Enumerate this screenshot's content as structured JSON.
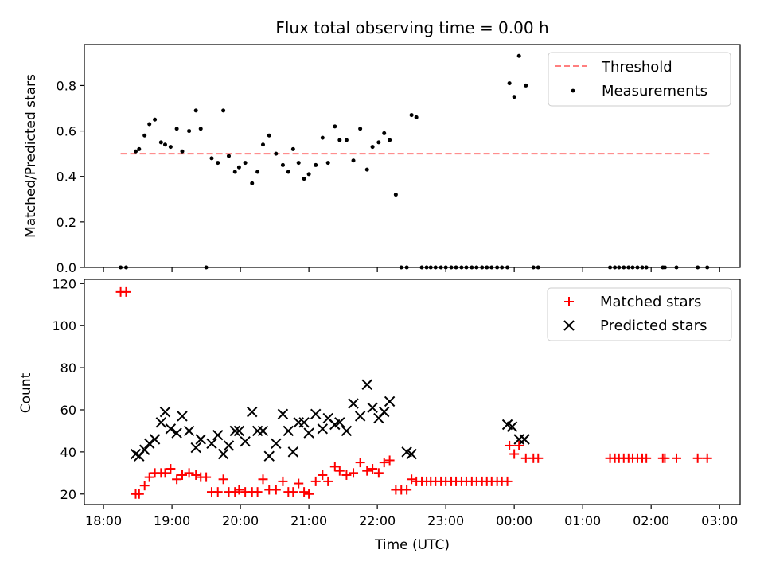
{
  "figure": {
    "title": "Flux total observing time = 0.00 h"
  },
  "colors": {
    "threshold": "#ff7f7f",
    "measurements": "#000000",
    "matched": "#ff0000",
    "predicted": "#000000"
  },
  "chart_data": [
    {
      "type": "scatter",
      "title": "Flux total observing time = 0.00 h",
      "ylabel": "Matched/Predicted stars",
      "xlabel": "",
      "x_unit": "hours (UTC, after midnight continues past 24)",
      "xlim": [
        17.72,
        27.3
      ],
      "ylim": [
        0,
        0.98
      ],
      "yticks": [
        "0.0",
        "0.2",
        "0.4",
        "0.6",
        "0.8"
      ],
      "yticks_values": [
        0,
        0.2,
        0.4,
        0.6,
        0.8
      ],
      "legend": {
        "position": "top-right",
        "entries": [
          "Threshold",
          "Measurements"
        ]
      },
      "series": [
        {
          "name": "Threshold",
          "kind": "dashed-line",
          "x": [
            18.25,
            26.85
          ],
          "y": [
            0.5,
            0.5
          ]
        },
        {
          "name": "Measurements",
          "kind": "dots",
          "x": [
            18.25,
            18.33,
            18.47,
            18.52,
            18.6,
            18.67,
            18.75,
            18.84,
            18.9,
            18.98,
            19.07,
            19.15,
            19.25,
            19.35,
            19.42,
            19.5,
            19.58,
            19.67,
            19.75,
            19.83,
            19.92,
            19.98,
            20.07,
            20.17,
            20.25,
            20.33,
            20.42,
            20.52,
            20.62,
            20.7,
            20.77,
            20.85,
            20.93,
            21.0,
            21.1,
            21.2,
            21.28,
            21.38,
            21.45,
            21.55,
            21.65,
            21.75,
            21.85,
            21.93,
            22.02,
            22.1,
            22.18,
            22.27,
            22.35,
            22.43,
            22.5,
            22.57,
            22.65,
            22.72,
            22.78,
            22.85,
            22.93,
            23.0,
            23.08,
            23.15,
            23.23,
            23.3,
            23.38,
            23.45,
            23.53,
            23.6,
            23.67,
            23.75,
            23.82,
            23.9,
            23.93,
            24.0,
            24.07,
            24.17,
            24.28,
            24.35,
            25.4,
            25.47,
            25.53,
            25.6,
            25.67,
            25.73,
            25.8,
            25.87,
            25.93,
            26.17,
            26.2,
            26.37,
            26.68,
            26.82
          ],
          "y": [
            0.0,
            0.0,
            0.51,
            0.52,
            0.58,
            0.63,
            0.65,
            0.55,
            0.54,
            0.53,
            0.61,
            0.51,
            0.6,
            0.69,
            0.61,
            0.0,
            0.48,
            0.46,
            0.69,
            0.49,
            0.42,
            0.44,
            0.46,
            0.37,
            0.42,
            0.54,
            0.58,
            0.5,
            0.45,
            0.42,
            0.52,
            0.46,
            0.39,
            0.41,
            0.45,
            0.57,
            0.46,
            0.62,
            0.56,
            0.56,
            0.47,
            0.61,
            0.43,
            0.53,
            0.55,
            0.59,
            0.56,
            0.32,
            0.0,
            0.0,
            0.67,
            0.66,
            0.0,
            0.0,
            0.0,
            0.0,
            0.0,
            0.0,
            0.0,
            0.0,
            0.0,
            0.0,
            0.0,
            0.0,
            0.0,
            0.0,
            0.0,
            0.0,
            0.0,
            0.0,
            0.81,
            0.75,
            0.93,
            0.8,
            0.0,
            0.0,
            0.0,
            0.0,
            0.0,
            0.0,
            0.0,
            0.0,
            0.0,
            0.0,
            0.0,
            0.0,
            0.0,
            0.0,
            0.0,
            0.0
          ]
        }
      ]
    },
    {
      "type": "scatter",
      "title": "",
      "ylabel": "Count",
      "xlabel": "Time (UTC)",
      "xlim": [
        17.72,
        27.3
      ],
      "ylim": [
        15,
        122
      ],
      "yticks": [
        "20",
        "40",
        "60",
        "80",
        "100",
        "120"
      ],
      "yticks_values": [
        20,
        40,
        60,
        80,
        100,
        120
      ],
      "xticks": [
        "18:00",
        "19:00",
        "20:00",
        "21:00",
        "22:00",
        "23:00",
        "00:00",
        "01:00",
        "02:00",
        "03:00"
      ],
      "xticks_values": [
        18,
        19,
        20,
        21,
        22,
        23,
        24,
        25,
        26,
        27
      ],
      "legend": {
        "position": "top-right",
        "entries": [
          "Matched stars",
          "Predicted stars"
        ]
      },
      "series": [
        {
          "name": "Matched stars",
          "marker": "plus",
          "x": [
            18.25,
            18.33,
            18.47,
            18.52,
            18.6,
            18.67,
            18.75,
            18.84,
            18.9,
            18.98,
            19.07,
            19.15,
            19.25,
            19.35,
            19.42,
            19.5,
            19.58,
            19.67,
            19.75,
            19.83,
            19.92,
            19.98,
            20.07,
            20.17,
            20.25,
            20.33,
            20.42,
            20.52,
            20.62,
            20.7,
            20.77,
            20.85,
            20.93,
            21.0,
            21.1,
            21.2,
            21.28,
            21.38,
            21.45,
            21.55,
            21.65,
            21.75,
            21.85,
            21.93,
            22.02,
            22.1,
            22.18,
            22.27,
            22.35,
            22.43,
            22.5,
            22.57,
            22.65,
            22.72,
            22.78,
            22.85,
            22.93,
            23.0,
            23.08,
            23.15,
            23.23,
            23.3,
            23.38,
            23.45,
            23.53,
            23.6,
            23.67,
            23.75,
            23.82,
            23.9,
            23.93,
            24.0,
            24.07,
            24.17,
            24.28,
            24.35,
            25.4,
            25.47,
            25.53,
            25.6,
            25.67,
            25.73,
            25.8,
            25.87,
            25.93,
            26.17,
            26.2,
            26.37,
            26.68,
            26.82
          ],
          "y": [
            116,
            116,
            20,
            20,
            24,
            28,
            30,
            30,
            30,
            32,
            27,
            29,
            30,
            29,
            28,
            28,
            21,
            21,
            27,
            21,
            21,
            22,
            21,
            21,
            21,
            27,
            22,
            22,
            26,
            21,
            21,
            25,
            21,
            20,
            26,
            29,
            26,
            33,
            31,
            29,
            30,
            35,
            31,
            32,
            30,
            35,
            36,
            22,
            22,
            22,
            27,
            26,
            26,
            26,
            26,
            26,
            26,
            26,
            26,
            26,
            26,
            26,
            26,
            26,
            26,
            26,
            26,
            26,
            26,
            26,
            43,
            39,
            43,
            37,
            37,
            37,
            37,
            37,
            37,
            37,
            37,
            37,
            37,
            37,
            37,
            37,
            37,
            37,
            37,
            37
          ]
        },
        {
          "name": "Predicted stars",
          "marker": "x",
          "x": [
            18.47,
            18.52,
            18.6,
            18.67,
            18.75,
            18.84,
            18.9,
            18.98,
            19.07,
            19.15,
            19.25,
            19.35,
            19.42,
            19.58,
            19.67,
            19.75,
            19.83,
            19.92,
            19.98,
            20.07,
            20.17,
            20.25,
            20.33,
            20.42,
            20.52,
            20.62,
            20.7,
            20.77,
            20.85,
            20.93,
            21.0,
            21.1,
            21.2,
            21.28,
            21.38,
            21.45,
            21.55,
            21.65,
            21.75,
            21.85,
            21.93,
            22.02,
            22.1,
            22.18,
            22.43,
            22.5,
            23.9,
            23.97,
            24.07,
            24.15
          ],
          "y": [
            39,
            38,
            41,
            44,
            46,
            54,
            59,
            51,
            49,
            57,
            50,
            42,
            46,
            44,
            48,
            39,
            43,
            50,
            50,
            45,
            59,
            50,
            50,
            38,
            44,
            58,
            50,
            40,
            54,
            54,
            49,
            58,
            51,
            56,
            53,
            54,
            50,
            63,
            57,
            72,
            61,
            56,
            59,
            64,
            40,
            39,
            53,
            52,
            46,
            46
          ]
        }
      ]
    }
  ]
}
